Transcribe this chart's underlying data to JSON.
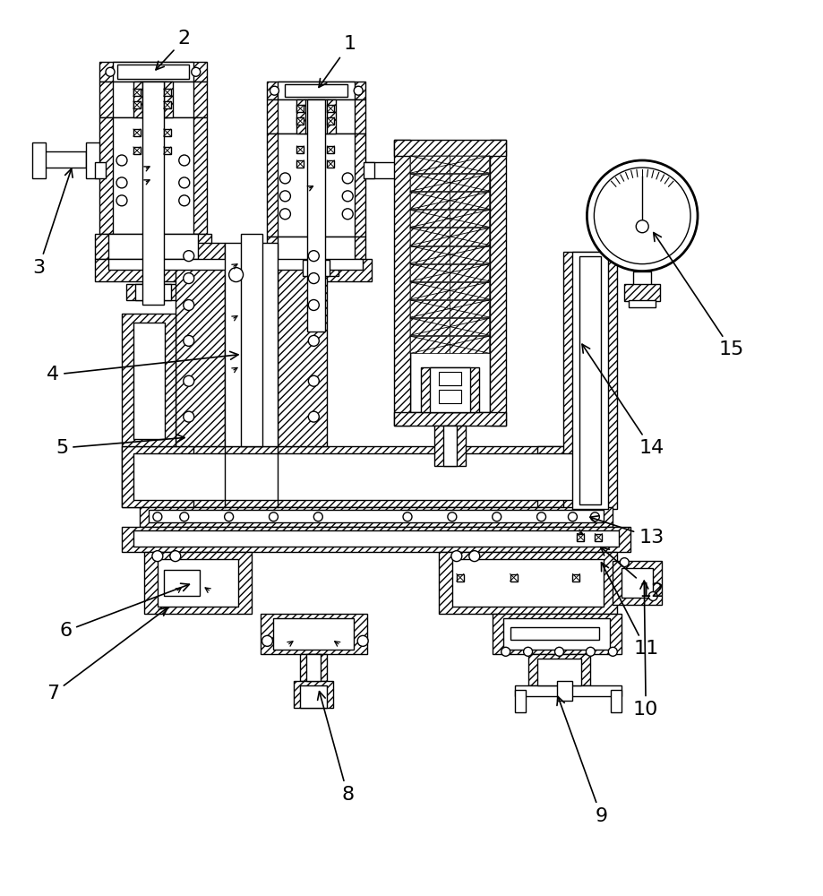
{
  "background_color": "#ffffff",
  "line_color": "#000000",
  "figsize": [
    9.19,
    10.0
  ],
  "dpi": 100,
  "labels_data": [
    [
      "1",
      390,
      48,
      355,
      90
    ],
    [
      "2",
      205,
      42,
      190,
      72
    ],
    [
      "3",
      42,
      298,
      100,
      275
    ],
    [
      "4",
      58,
      418,
      195,
      408
    ],
    [
      "5",
      68,
      500,
      205,
      490
    ],
    [
      "6",
      72,
      705,
      310,
      680
    ],
    [
      "7",
      58,
      775,
      185,
      755
    ],
    [
      "8",
      388,
      888,
      388,
      865
    ],
    [
      "9",
      672,
      912,
      660,
      897
    ],
    [
      "10",
      722,
      793,
      693,
      810
    ],
    [
      "11",
      722,
      725,
      670,
      712
    ],
    [
      "12",
      728,
      660,
      668,
      650
    ],
    [
      "13",
      728,
      600,
      660,
      588
    ],
    [
      "14",
      728,
      500,
      658,
      510
    ],
    [
      "15",
      818,
      390,
      740,
      330
    ]
  ]
}
